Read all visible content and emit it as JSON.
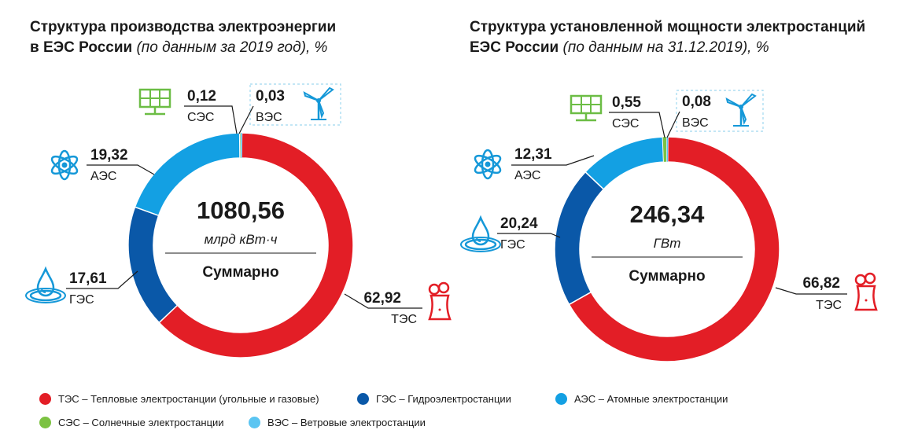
{
  "titles": {
    "left": {
      "line1": "Структура производства электроэнергии",
      "line2_bold": "в ЕЭС России",
      "line2_italic": "(по данным за 2019 год), %"
    },
    "right": {
      "line1": "Структура установленной мощности электростанций",
      "line2_bold": "ЕЭС России",
      "line2_italic": "(по данным на 31.12.2019), %"
    }
  },
  "colors": {
    "tes": "#e31e26",
    "ges": "#0a58a8",
    "aes": "#13a0e3",
    "ses": "#7cc242",
    "ves": "#5bc5f2",
    "icon_blue": "#1598d8",
    "icon_green": "#6cbd45",
    "icon_red": "#e31e26"
  },
  "chart_data": [
    {
      "type": "pie",
      "title": "Структура производства электроэнергии в ЕЭС России (по данным за 2019 год), %",
      "total": {
        "value": "1080,56",
        "unit": "млрд кВт·ч",
        "label": "Суммарно"
      },
      "categories": [
        "ТЭС",
        "ГЭС",
        "АЭС",
        "СЭС",
        "ВЭС"
      ],
      "values": [
        62.92,
        17.61,
        19.32,
        0.12,
        0.03
      ],
      "labels": [
        "62,92",
        "17,61",
        "19,32",
        "0,12",
        "0,03"
      ]
    },
    {
      "type": "pie",
      "title": "Структура установленной мощности электростанций ЕЭС России (по данным на 31.12.2019), %",
      "total": {
        "value": "246,34",
        "unit": "ГВт",
        "label": "Суммарно"
      },
      "categories": [
        "ТЭС",
        "ГЭС",
        "АЭС",
        "СЭС",
        "ВЭС"
      ],
      "values": [
        66.82,
        20.24,
        12.31,
        0.55,
        0.08
      ],
      "labels": [
        "66,82",
        "20,24",
        "12,31",
        "0,55",
        "0,08"
      ]
    }
  ],
  "legend": [
    {
      "key": "tes",
      "label": "ТЭС – Тепловые электростанции (угольные и газовые)"
    },
    {
      "key": "ges",
      "label": "ГЭС – Гидроэлектростанции"
    },
    {
      "key": "aes",
      "label": "АЭС – Атомные электростанции"
    },
    {
      "key": "ses",
      "label": "СЭС – Солнечные электростанции"
    },
    {
      "key": "ves",
      "label": "ВЭС – Ветровые электростанции"
    }
  ]
}
